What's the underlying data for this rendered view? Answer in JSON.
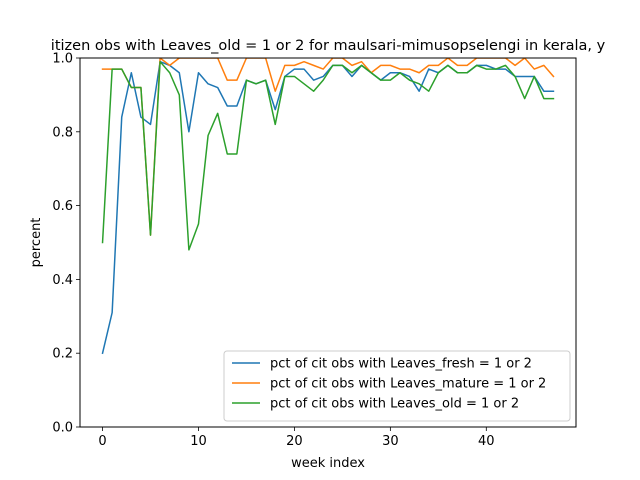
{
  "chart_data": {
    "type": "line",
    "title": "itizen obs with Leaves_old = 1 or 2 for maulsari-mimusopselengi in kerala, y",
    "xlabel": "week index",
    "ylabel": "percent",
    "xlim": [
      -2.35,
      49.35
    ],
    "ylim": [
      0.0,
      1.0
    ],
    "xticks": [
      0,
      10,
      20,
      30,
      40
    ],
    "yticks": [
      0.0,
      0.2,
      0.4,
      0.6,
      0.8,
      1.0
    ],
    "xtick_labels": [
      "0",
      "10",
      "20",
      "30",
      "40"
    ],
    "ytick_labels": [
      "0.0",
      "0.2",
      "0.4",
      "0.6",
      "0.8",
      "1.0"
    ],
    "grid": false,
    "legend_position": "lower-right",
    "x": [
      0,
      1,
      2,
      3,
      4,
      5,
      6,
      7,
      8,
      9,
      10,
      11,
      12,
      13,
      14,
      15,
      16,
      17,
      18,
      19,
      20,
      21,
      22,
      23,
      24,
      25,
      26,
      27,
      28,
      29,
      30,
      31,
      32,
      33,
      34,
      35,
      36,
      37,
      38,
      39,
      40,
      41,
      42,
      43,
      44,
      45,
      46,
      47
    ],
    "series": [
      {
        "name": "pct of cit obs with Leaves_fresh = 1 or 2",
        "color": "#1f77b4",
        "values": [
          0.2,
          0.31,
          0.84,
          0.96,
          0.84,
          0.82,
          0.99,
          0.98,
          0.96,
          0.8,
          0.96,
          0.93,
          0.92,
          0.87,
          0.87,
          0.94,
          0.93,
          0.94,
          0.86,
          0.95,
          0.97,
          0.97,
          0.94,
          0.95,
          0.98,
          0.98,
          0.95,
          0.98,
          0.96,
          0.94,
          0.96,
          0.96,
          0.95,
          0.91,
          0.97,
          0.96,
          0.98,
          0.96,
          0.96,
          0.98,
          0.98,
          0.97,
          0.97,
          0.95,
          0.95,
          0.95,
          0.91,
          0.91
        ]
      },
      {
        "name": "pct of cit obs with Leaves_mature = 1 or 2",
        "color": "#ff7f0e",
        "values": [
          0.97,
          0.97,
          0.97,
          0.92,
          0.92,
          0.52,
          1.0,
          0.98,
          1.0,
          1.0,
          1.0,
          1.0,
          1.0,
          0.94,
          0.94,
          1.0,
          1.0,
          1.0,
          0.91,
          0.98,
          0.98,
          0.99,
          0.98,
          0.97,
          1.0,
          1.0,
          0.98,
          0.99,
          0.96,
          0.98,
          0.98,
          0.97,
          0.97,
          0.96,
          0.98,
          0.98,
          1.0,
          0.98,
          0.98,
          1.0,
          1.0,
          1.0,
          1.0,
          0.98,
          1.0,
          0.97,
          0.98,
          0.95
        ]
      },
      {
        "name": "pct of cit obs with Leaves_old = 1 or 2",
        "color": "#2ca02c",
        "values": [
          0.5,
          0.97,
          0.97,
          0.92,
          0.92,
          0.52,
          0.99,
          0.96,
          0.9,
          0.48,
          0.55,
          0.79,
          0.85,
          0.74,
          0.74,
          0.94,
          0.93,
          0.94,
          0.82,
          0.95,
          0.95,
          0.93,
          0.91,
          0.94,
          0.98,
          0.98,
          0.96,
          0.98,
          0.96,
          0.94,
          0.94,
          0.96,
          0.94,
          0.93,
          0.91,
          0.96,
          0.98,
          0.96,
          0.96,
          0.98,
          0.97,
          0.97,
          0.98,
          0.95,
          0.89,
          0.95,
          0.89,
          0.89
        ]
      }
    ]
  }
}
